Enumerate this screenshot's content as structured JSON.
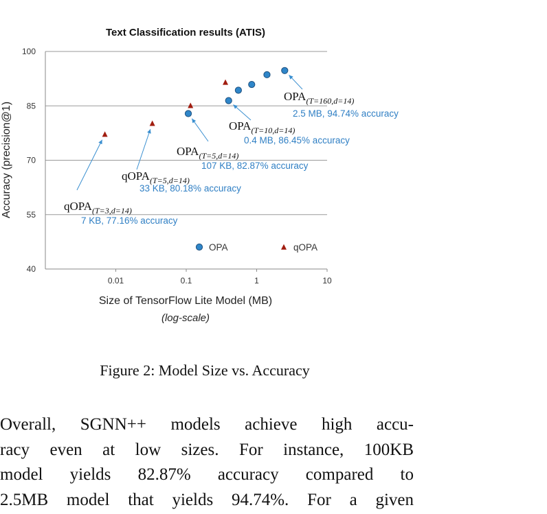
{
  "chart_data": {
    "type": "scatter",
    "title": "Text Classification results (ATIS)",
    "xlabel": "Size of TensorFlow Lite Model (MB)",
    "xlabel_sub": "(log-scale)",
    "ylabel": "Accuracy (precision@1)",
    "x_scale": "log",
    "xlim": [
      0.001,
      10
    ],
    "ylim": [
      40,
      100
    ],
    "x_ticks": [
      0.01,
      0.1,
      1,
      10
    ],
    "x_tick_labels": [
      "0.01",
      "0.1",
      "1",
      "10"
    ],
    "y_ticks": [
      40,
      55,
      70,
      85,
      100
    ],
    "y_tick_labels": [
      "40",
      "55",
      "70",
      "85",
      "100"
    ],
    "grid": "horizontal",
    "legend_position": "bottom-right",
    "series": [
      {
        "name": "OPA",
        "marker": "circle",
        "color": "#2f86c9",
        "points": [
          {
            "x": 0.107,
            "y": 82.87
          },
          {
            "x": 0.4,
            "y": 86.45
          },
          {
            "x": 0.55,
            "y": 89.3
          },
          {
            "x": 0.85,
            "y": 90.9
          },
          {
            "x": 1.4,
            "y": 93.6
          },
          {
            "x": 2.5,
            "y": 94.74
          }
        ]
      },
      {
        "name": "qOPA",
        "marker": "triangle",
        "color": "#a11d10",
        "points": [
          {
            "x": 0.007,
            "y": 77.16
          },
          {
            "x": 0.033,
            "y": 80.18
          },
          {
            "x": 0.115,
            "y": 85.1
          },
          {
            "x": 0.36,
            "y": 91.5
          }
        ]
      }
    ],
    "annotations": [
      {
        "label_base": "OPA",
        "label_sub": "(T=160,d=14)",
        "detail": "2.5 MB, 94.74% accuracy",
        "series": "OPA",
        "point_index": 5
      },
      {
        "label_base": "OPA",
        "label_sub": "(T=10,d=14)",
        "detail": "0.4 MB, 86.45% accuracy",
        "series": "OPA",
        "point_index": 1
      },
      {
        "label_base": "OPA",
        "label_sub": "(T=5,d=14)",
        "detail": "107 KB, 82.87% accuracy",
        "series": "OPA",
        "point_index": 0
      },
      {
        "label_base": "qOPA",
        "label_sub": "(T=5,d=14)",
        "detail": "33 KB, 80.18% accuracy",
        "series": "qOPA",
        "point_index": 1
      },
      {
        "label_base": "qOPA",
        "label_sub": "(T=3,d=14)",
        "detail": "7 KB, 77.16% accuracy",
        "series": "qOPA",
        "point_index": 0
      }
    ],
    "colors": {
      "axis": "#8a8a8a",
      "grid": "#9a9a9a",
      "annotation_text": "#2f7fc4",
      "arrow": "#3a8fd0"
    }
  },
  "figure_caption": "Figure 2: Model Size vs. Accuracy",
  "body_text": [
    "Overall, SGNN++ models achieve high accu-",
    "racy even at low sizes. For instance, 100KB",
    "model yields 82.87% accuracy compared to",
    "2.5MB model that yields 94.74%. For a given"
  ]
}
